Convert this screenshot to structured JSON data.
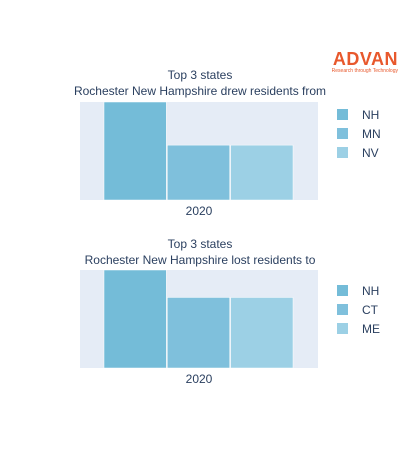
{
  "brand": {
    "name": "ADVAN",
    "tagline": "Research through Technology",
    "color": "#e8582c"
  },
  "chart_data": [
    {
      "type": "bar",
      "title": "Top 3 states",
      "subtitle": "Rochester New Hampshire drew residents from",
      "categories": [
        "2020"
      ],
      "series": [
        {
          "name": "NH",
          "values": [
            100
          ],
          "color": "#74bcd8"
        },
        {
          "name": "MN",
          "values": [
            56
          ],
          "color": "#7fc0dc"
        },
        {
          "name": "NV",
          "values": [
            56
          ],
          "color": "#9cd0e5"
        }
      ],
      "ylim": [
        0,
        100
      ],
      "grid": false,
      "legend": "right",
      "plot_bg": "#e5ecf6"
    },
    {
      "type": "bar",
      "title": "Top 3 states",
      "subtitle": "Rochester New Hampshire lost residents to",
      "categories": [
        "2020"
      ],
      "series": [
        {
          "name": "NH",
          "values": [
            100
          ],
          "color": "#74bcd8"
        },
        {
          "name": "CT",
          "values": [
            72
          ],
          "color": "#7fc0dc"
        },
        {
          "name": "ME",
          "values": [
            72
          ],
          "color": "#9cd0e5"
        }
      ],
      "ylim": [
        0,
        100
      ],
      "grid": false,
      "legend": "right",
      "plot_bg": "#e5ecf6"
    }
  ]
}
